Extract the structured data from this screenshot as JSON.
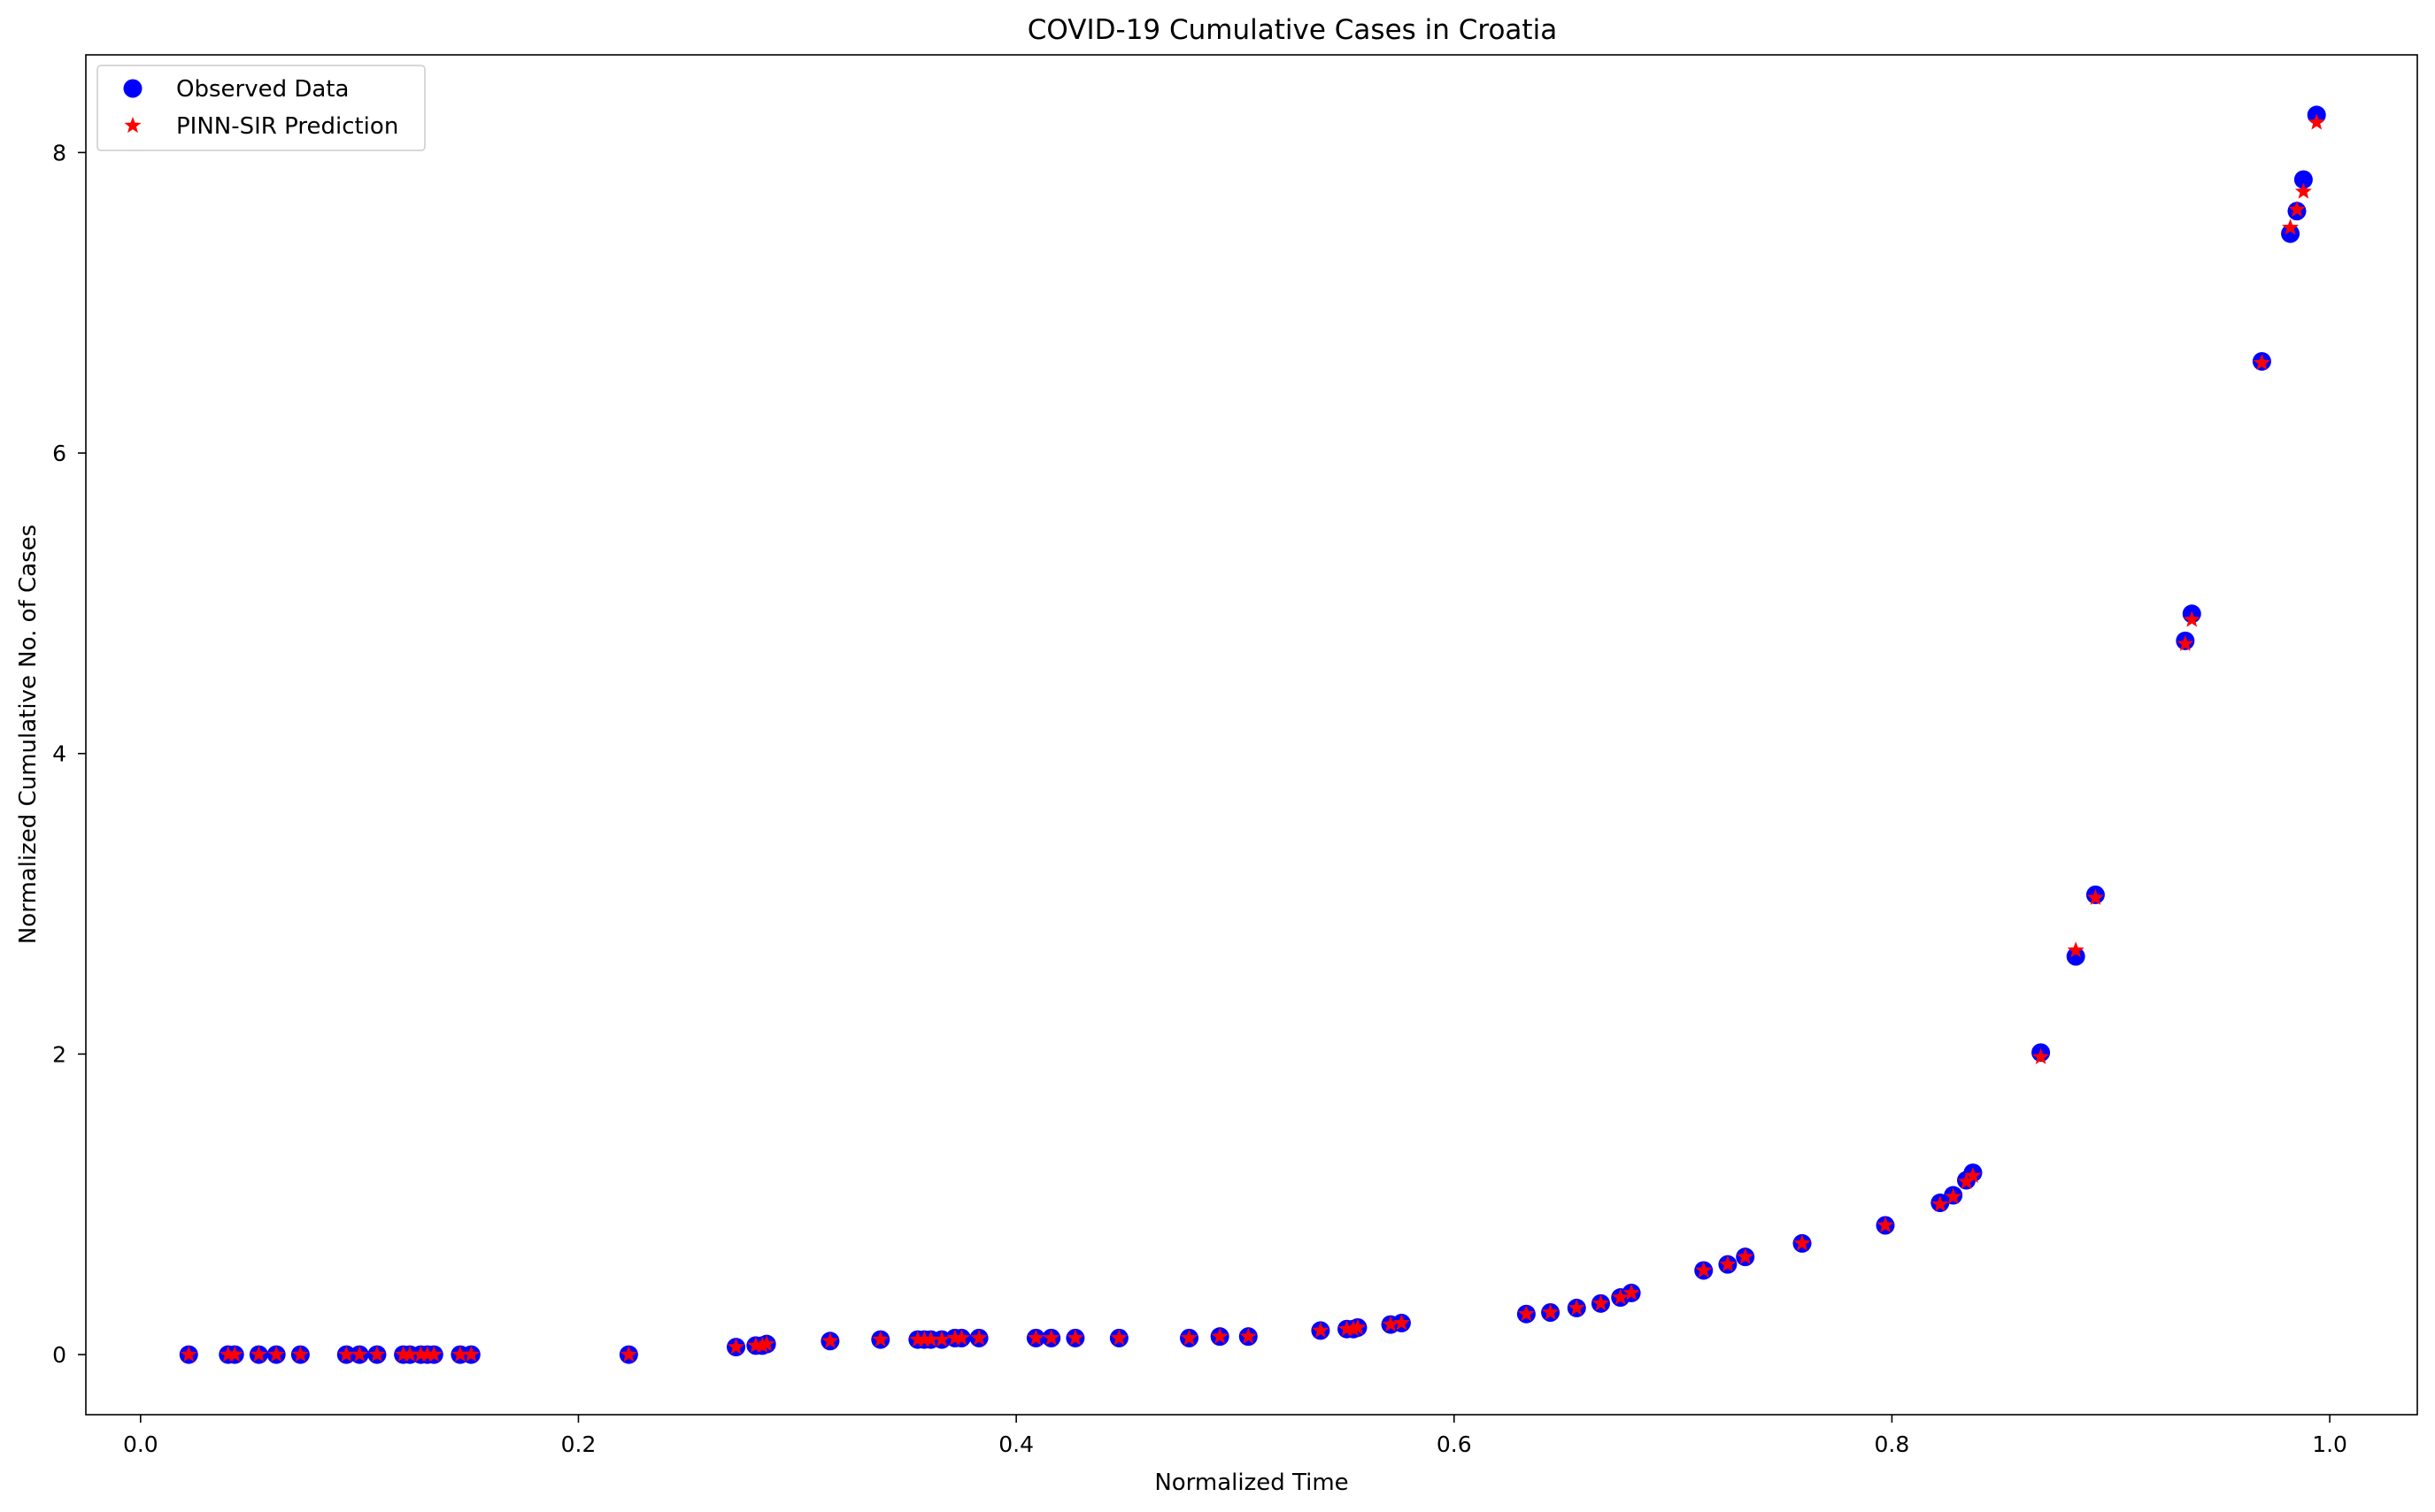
{
  "chart_data": {
    "type": "scatter",
    "title": "COVID-19 Cumulative Cases in Croatia",
    "xlabel": "Normalized Time",
    "ylabel": "Normalized Cumulative No. of Cases",
    "xlim": [
      -0.025,
      1.04
    ],
    "ylim": [
      -0.4,
      8.65
    ],
    "xticks": [
      0.0,
      0.2,
      0.4,
      0.6,
      0.8,
      1.0
    ],
    "xtick_labels": [
      "0.0",
      "0.2",
      "0.4",
      "0.6",
      "0.8",
      "1.0"
    ],
    "yticks": [
      0,
      2,
      4,
      6,
      8
    ],
    "ytick_labels": [
      "0",
      "2",
      "4",
      "6",
      "8"
    ],
    "grid": false,
    "legend_position": "top-left",
    "series": [
      {
        "name": "Observed Data",
        "marker": "circle",
        "color": "#0000ff",
        "x": [
          0.022,
          0.04,
          0.043,
          0.054,
          0.062,
          0.073,
          0.094,
          0.1,
          0.108,
          0.12,
          0.123,
          0.128,
          0.131,
          0.134,
          0.146,
          0.151,
          0.223,
          0.272,
          0.281,
          0.284,
          0.286,
          0.315,
          0.338,
          0.355,
          0.358,
          0.361,
          0.366,
          0.372,
          0.375,
          0.383,
          0.409,
          0.416,
          0.427,
          0.447,
          0.479,
          0.493,
          0.506,
          0.539,
          0.551,
          0.554,
          0.556,
          0.571,
          0.576,
          0.633,
          0.644,
          0.656,
          0.667,
          0.676,
          0.681,
          0.714,
          0.725,
          0.733,
          0.759,
          0.797,
          0.822,
          0.828,
          0.834,
          0.837,
          0.868,
          0.884,
          0.893,
          0.934,
          0.937,
          0.969,
          0.982,
          0.985,
          0.988,
          0.994
        ],
        "y": [
          0,
          0,
          0,
          0,
          0,
          0,
          0,
          0,
          0,
          0,
          0,
          0,
          0,
          0,
          0,
          0,
          0,
          0.05,
          0.06,
          0.06,
          0.07,
          0.09,
          0.1,
          0.1,
          0.1,
          0.1,
          0.1,
          0.11,
          0.11,
          0.11,
          0.11,
          0.11,
          0.11,
          0.11,
          0.11,
          0.12,
          0.12,
          0.16,
          0.17,
          0.17,
          0.18,
          0.2,
          0.21,
          0.27,
          0.28,
          0.31,
          0.34,
          0.38,
          0.41,
          0.56,
          0.6,
          0.65,
          0.74,
          0.86,
          1.01,
          1.06,
          1.16,
          1.21,
          2.01,
          2.65,
          3.06,
          4.75,
          4.93,
          6.61,
          7.46,
          7.61,
          7.82,
          8.25
        ]
      },
      {
        "name": "PINN-SIR Prediction",
        "marker": "star",
        "color": "#ff0000",
        "x": [
          0.022,
          0.04,
          0.043,
          0.054,
          0.062,
          0.073,
          0.094,
          0.1,
          0.108,
          0.12,
          0.123,
          0.128,
          0.131,
          0.134,
          0.146,
          0.151,
          0.223,
          0.272,
          0.281,
          0.284,
          0.286,
          0.315,
          0.338,
          0.355,
          0.358,
          0.361,
          0.366,
          0.372,
          0.375,
          0.383,
          0.409,
          0.416,
          0.427,
          0.447,
          0.479,
          0.493,
          0.506,
          0.539,
          0.551,
          0.554,
          0.556,
          0.571,
          0.576,
          0.633,
          0.644,
          0.656,
          0.667,
          0.676,
          0.681,
          0.714,
          0.725,
          0.733,
          0.759,
          0.797,
          0.822,
          0.828,
          0.834,
          0.837,
          0.868,
          0.884,
          0.893,
          0.934,
          0.937,
          0.969,
          0.982,
          0.985,
          0.988,
          0.994
        ],
        "y": [
          0,
          0,
          0,
          0,
          0,
          0,
          0,
          0,
          0,
          0,
          0,
          0,
          0,
          0,
          0,
          0,
          0,
          0.05,
          0.06,
          0.06,
          0.07,
          0.09,
          0.1,
          0.1,
          0.1,
          0.1,
          0.1,
          0.11,
          0.11,
          0.11,
          0.11,
          0.11,
          0.11,
          0.11,
          0.11,
          0.12,
          0.12,
          0.16,
          0.17,
          0.17,
          0.18,
          0.2,
          0.21,
          0.27,
          0.28,
          0.31,
          0.34,
          0.38,
          0.41,
          0.56,
          0.6,
          0.65,
          0.74,
          0.86,
          1.0,
          1.05,
          1.15,
          1.19,
          1.98,
          2.69,
          3.04,
          4.73,
          4.89,
          6.6,
          7.5,
          7.62,
          7.74,
          8.2
        ]
      }
    ]
  }
}
